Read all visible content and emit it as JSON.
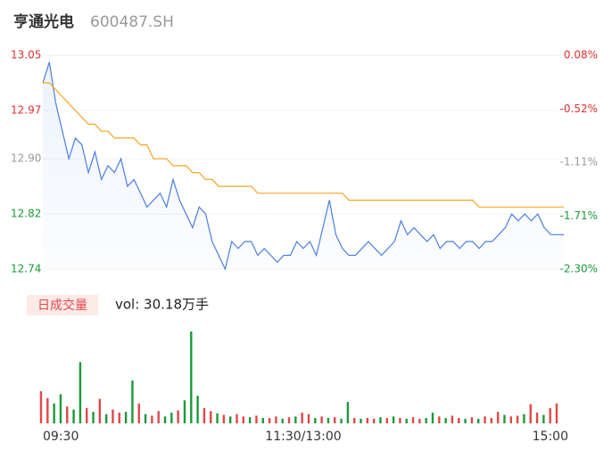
{
  "chart_data": [
    {
      "type": "line",
      "title": "亨通光电",
      "subtitle": "600487.SH",
      "xlim": [
        0,
        240
      ],
      "xticks": [
        {
          "value": 0,
          "label": "09:30"
        },
        {
          "value": 120,
          "label": "11:30/13:00"
        },
        {
          "value": 240,
          "label": "15:00"
        }
      ],
      "ylim": [
        12.74,
        13.05
      ],
      "yticks": [
        {
          "value": 12.74,
          "label": "12.74"
        },
        {
          "value": 12.82,
          "label": "12.82"
        },
        {
          "value": 12.9,
          "label": "12.90"
        },
        {
          "value": 12.97,
          "label": "12.97"
        },
        {
          "value": 13.05,
          "label": "13.05"
        }
      ],
      "ytick_colors": [
        "#1a9a3a",
        "#1a9a3a",
        "#999999",
        "#e03030",
        "#e03030"
      ],
      "y2lim": [
        -2.3,
        0.08
      ],
      "y2ticks": [
        {
          "value": -2.3,
          "label": "-2.30%"
        },
        {
          "value": -1.71,
          "label": "-1.71%"
        },
        {
          "value": -1.11,
          "label": "-1.11%"
        },
        {
          "value": -0.52,
          "label": "-0.52%"
        },
        {
          "value": 0.08,
          "label": "0.08%"
        }
      ],
      "y2tick_colors": [
        "#1a9a3a",
        "#1a9a3a",
        "#999999",
        "#e03030",
        "#e03030"
      ],
      "series": [
        {
          "color": "#4a7fe0",
          "values": [
            13.01,
            13.04,
            12.98,
            12.94,
            12.9,
            12.93,
            12.92,
            12.88,
            12.91,
            12.87,
            12.89,
            12.88,
            12.9,
            12.86,
            12.87,
            12.85,
            12.83,
            12.84,
            12.85,
            12.83,
            12.87,
            12.84,
            12.82,
            12.8,
            12.83,
            12.82,
            12.78,
            12.76,
            12.74,
            12.78,
            12.77,
            12.78,
            12.78,
            12.76,
            12.77,
            12.76,
            12.75,
            12.76,
            12.76,
            12.78,
            12.77,
            12.78,
            12.76,
            12.8,
            12.84,
            12.79,
            12.77,
            12.76,
            12.76,
            12.77,
            12.78,
            12.77,
            12.76,
            12.77,
            12.78,
            12.81,
            12.79,
            12.8,
            12.79,
            12.78,
            12.79,
            12.77,
            12.78,
            12.78,
            12.77,
            12.78,
            12.78,
            12.77,
            12.78,
            12.78,
            12.79,
            12.8,
            12.82,
            12.81,
            12.82,
            12.81,
            12.82,
            12.8,
            12.79,
            12.79,
            12.79
          ]
        },
        {
          "color": "#f5a623",
          "values": [
            13.01,
            13.01,
            13.0,
            12.99,
            12.98,
            12.97,
            12.96,
            12.95,
            12.95,
            12.94,
            12.94,
            12.93,
            12.93,
            12.93,
            12.93,
            12.92,
            12.92,
            12.9,
            12.9,
            12.9,
            12.89,
            12.89,
            12.89,
            12.88,
            12.88,
            12.87,
            12.87,
            12.86,
            12.86,
            12.86,
            12.86,
            12.86,
            12.86,
            12.85,
            12.85,
            12.85,
            12.85,
            12.85,
            12.85,
            12.85,
            12.85,
            12.85,
            12.85,
            12.85,
            12.85,
            12.85,
            12.85,
            12.84,
            12.84,
            12.84,
            12.84,
            12.84,
            12.84,
            12.84,
            12.84,
            12.84,
            12.84,
            12.84,
            12.84,
            12.84,
            12.84,
            12.84,
            12.84,
            12.84,
            12.84,
            12.84,
            12.84,
            12.83,
            12.83,
            12.83,
            12.83,
            12.83,
            12.83,
            12.83,
            12.83,
            12.83,
            12.83,
            12.83,
            12.83,
            12.83,
            12.83
          ]
        }
      ]
    },
    {
      "type": "bar",
      "title": "日成交量",
      "subtitle": "vol: 30.18万手",
      "xlim": [
        0,
        240
      ],
      "ylim": [
        0,
        12000
      ],
      "values": [
        4200,
        3300,
        2600,
        3800,
        2200,
        1800,
        8000,
        2000,
        1500,
        3200,
        1200,
        1800,
        1400,
        1500,
        5600,
        2600,
        1200,
        1000,
        1600,
        900,
        1400,
        1700,
        3000,
        12000,
        3600,
        2000,
        1600,
        1300,
        1100,
        900,
        1200,
        900,
        800,
        1000,
        700,
        700,
        900,
        600,
        800,
        900,
        1400,
        1200,
        700,
        900,
        700,
        800,
        600,
        2800,
        700,
        600,
        700,
        600,
        800,
        700,
        900,
        700,
        600,
        800,
        600,
        700,
        1400,
        900,
        700,
        1000,
        700,
        600,
        800,
        600,
        900,
        700,
        1500,
        1100,
        900,
        1000,
        1200,
        2500,
        1400,
        1100,
        2000,
        2600
      ],
      "bar_colors": [
        "#e04848",
        "#e04848",
        "#1a9a3a",
        "#1a9a3a",
        "#e04848",
        "#1a9a3a",
        "#1a9a3a",
        "#e04848",
        "#1a9a3a",
        "#e04848",
        "#1a9a3a",
        "#e04848",
        "#e04848",
        "#1a9a3a",
        "#1a9a3a",
        "#e04848",
        "#1a9a3a",
        "#e04848",
        "#e04848",
        "#1a9a3a",
        "#1a9a3a",
        "#e04848",
        "#1a9a3a",
        "#1a9a3a",
        "#1a9a3a",
        "#e04848",
        "#e04848",
        "#1a9a3a",
        "#e04848",
        "#1a9a3a",
        "#e04848",
        "#e04848",
        "#1a9a3a",
        "#e04848",
        "#1a9a3a",
        "#e04848",
        "#e04848",
        "#1a9a3a",
        "#e04848",
        "#1a9a3a",
        "#e04848",
        "#e04848",
        "#1a9a3a",
        "#e04848",
        "#1a9a3a",
        "#e04848",
        "#1a9a3a",
        "#1a9a3a",
        "#e04848",
        "#1a9a3a",
        "#e04848",
        "#e04848",
        "#1a9a3a",
        "#e04848",
        "#1a9a3a",
        "#e04848",
        "#1a9a3a",
        "#e04848",
        "#e04848",
        "#1a9a3a",
        "#1a9a3a",
        "#e04848",
        "#1a9a3a",
        "#e04848",
        "#e04848",
        "#1a9a3a",
        "#e04848",
        "#1a9a3a",
        "#e04848",
        "#e04848",
        "#e04848",
        "#1a9a3a",
        "#e04848",
        "#e04848",
        "#1a9a3a",
        "#e04848",
        "#e04848",
        "#1a9a3a",
        "#e04848",
        "#e04848"
      ]
    }
  ]
}
